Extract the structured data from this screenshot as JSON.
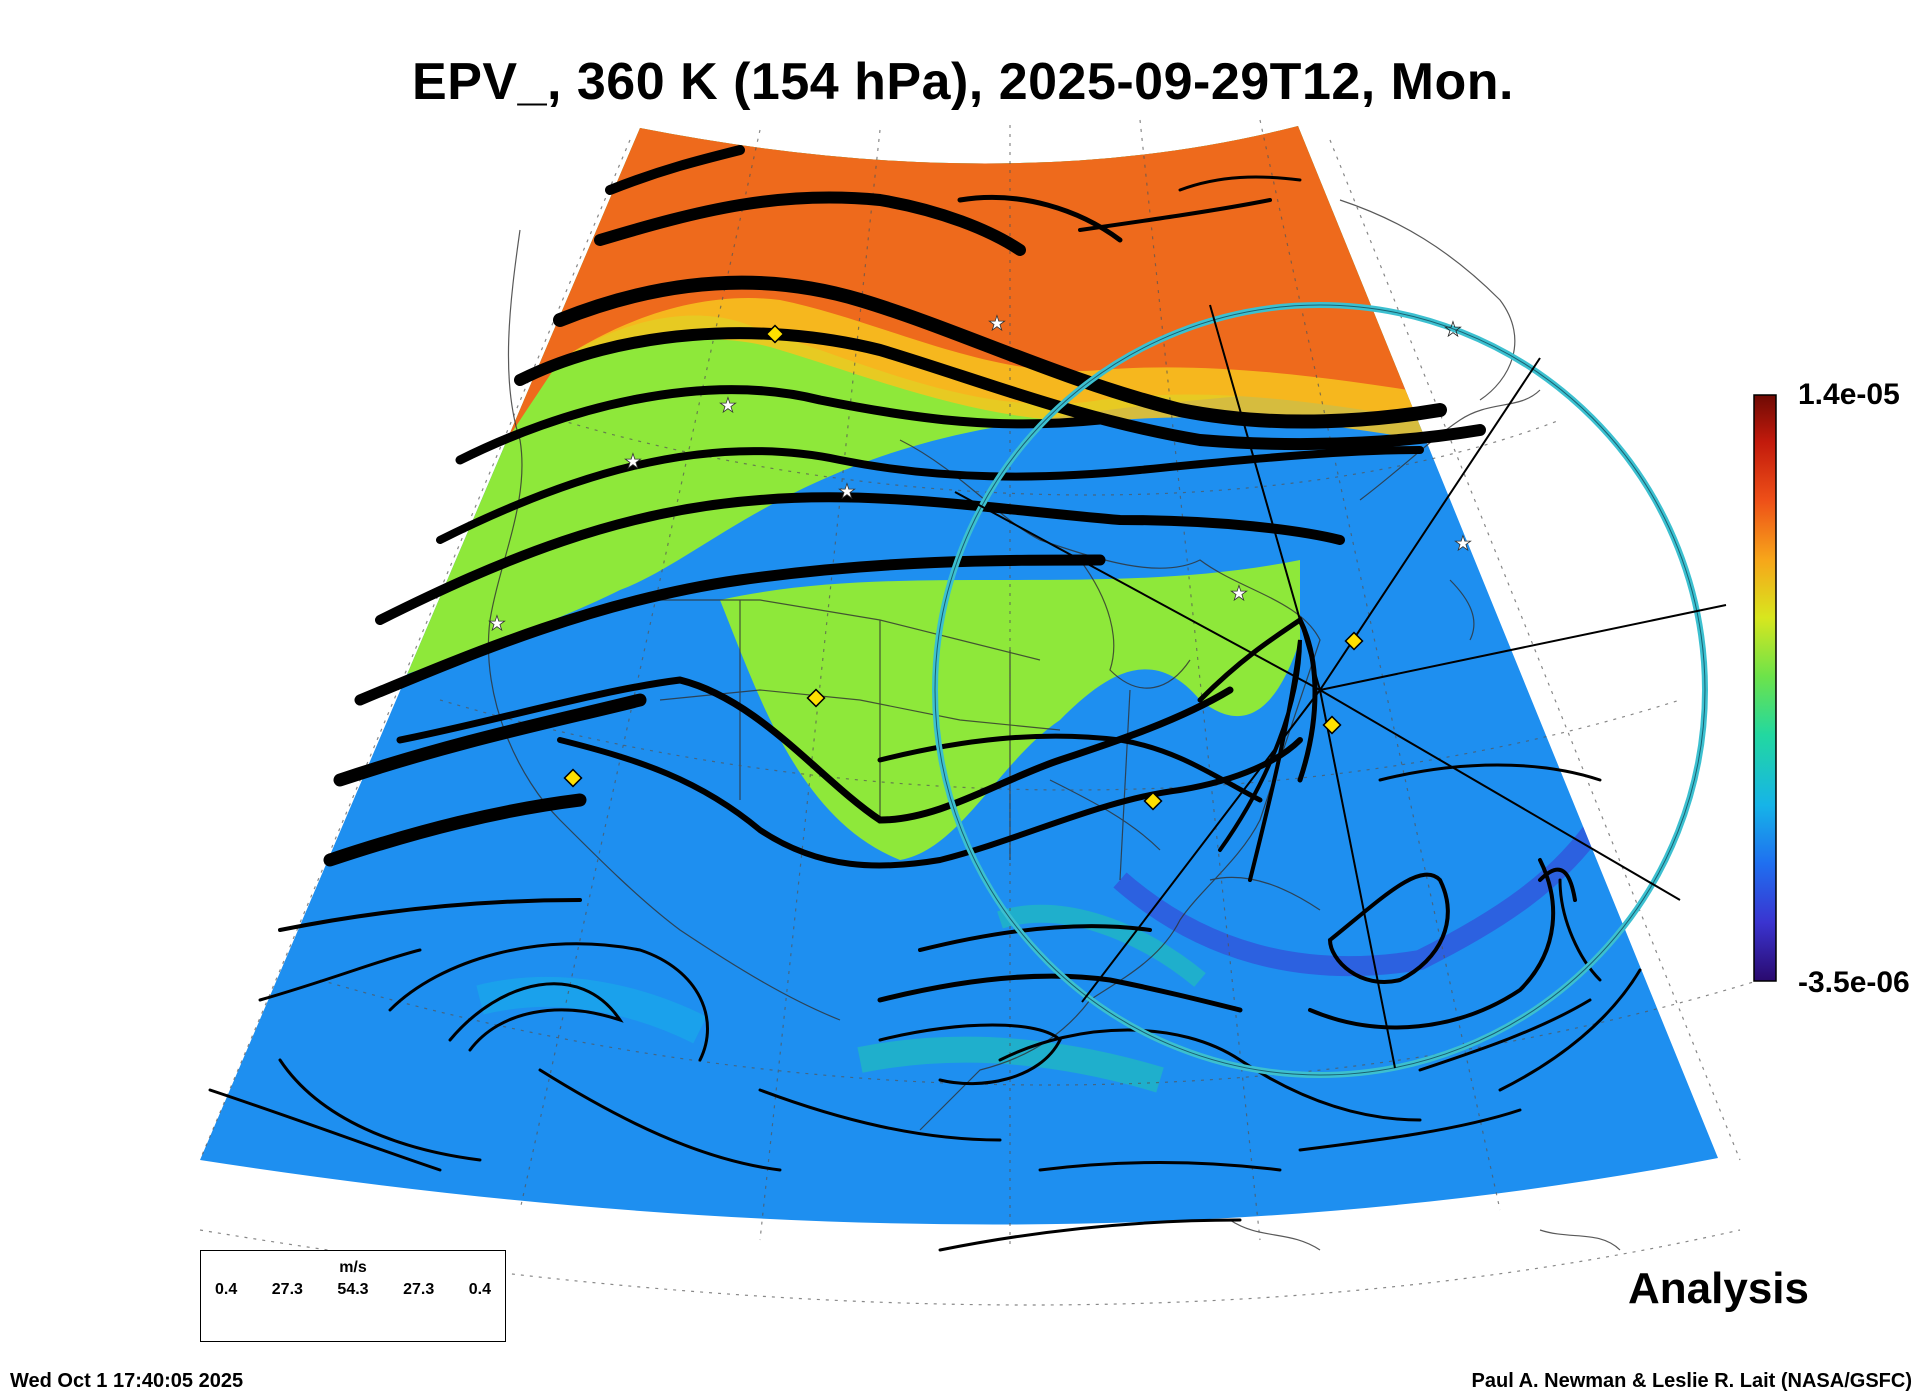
{
  "title": "EPV_, 360 K (154 hPa), 2025-09-29T12, Mon.",
  "colorbar": {
    "max_label": "1.4e-05",
    "min_label": "-3.5e-06",
    "colors": [
      "#2a0a6e",
      "#3a34d0",
      "#1f6ff0",
      "#16b4e8",
      "#22d8a0",
      "#6de34a",
      "#d8e61e",
      "#f7a51a",
      "#ee5018",
      "#c21a0c",
      "#6e0a04"
    ]
  },
  "wind_legend": {
    "units": "m/s",
    "values": [
      "0.4",
      "27.3",
      "54.3",
      "27.3",
      "0.4"
    ]
  },
  "analysis_label": "Analysis",
  "timestamp": "Wed Oct  1 17:40:05 2025",
  "credit": "Paul A. Newman & Leslie R. Lait (NASA/GSFC)",
  "map_colors": {
    "high_pv": "#ee6a1c",
    "mid_pv": "#8ee83a",
    "low_pv": "#1e8ff0",
    "ring": "#3cc0d0",
    "marker_diamond": "#ffe000",
    "marker_star": "#ffffff"
  }
}
